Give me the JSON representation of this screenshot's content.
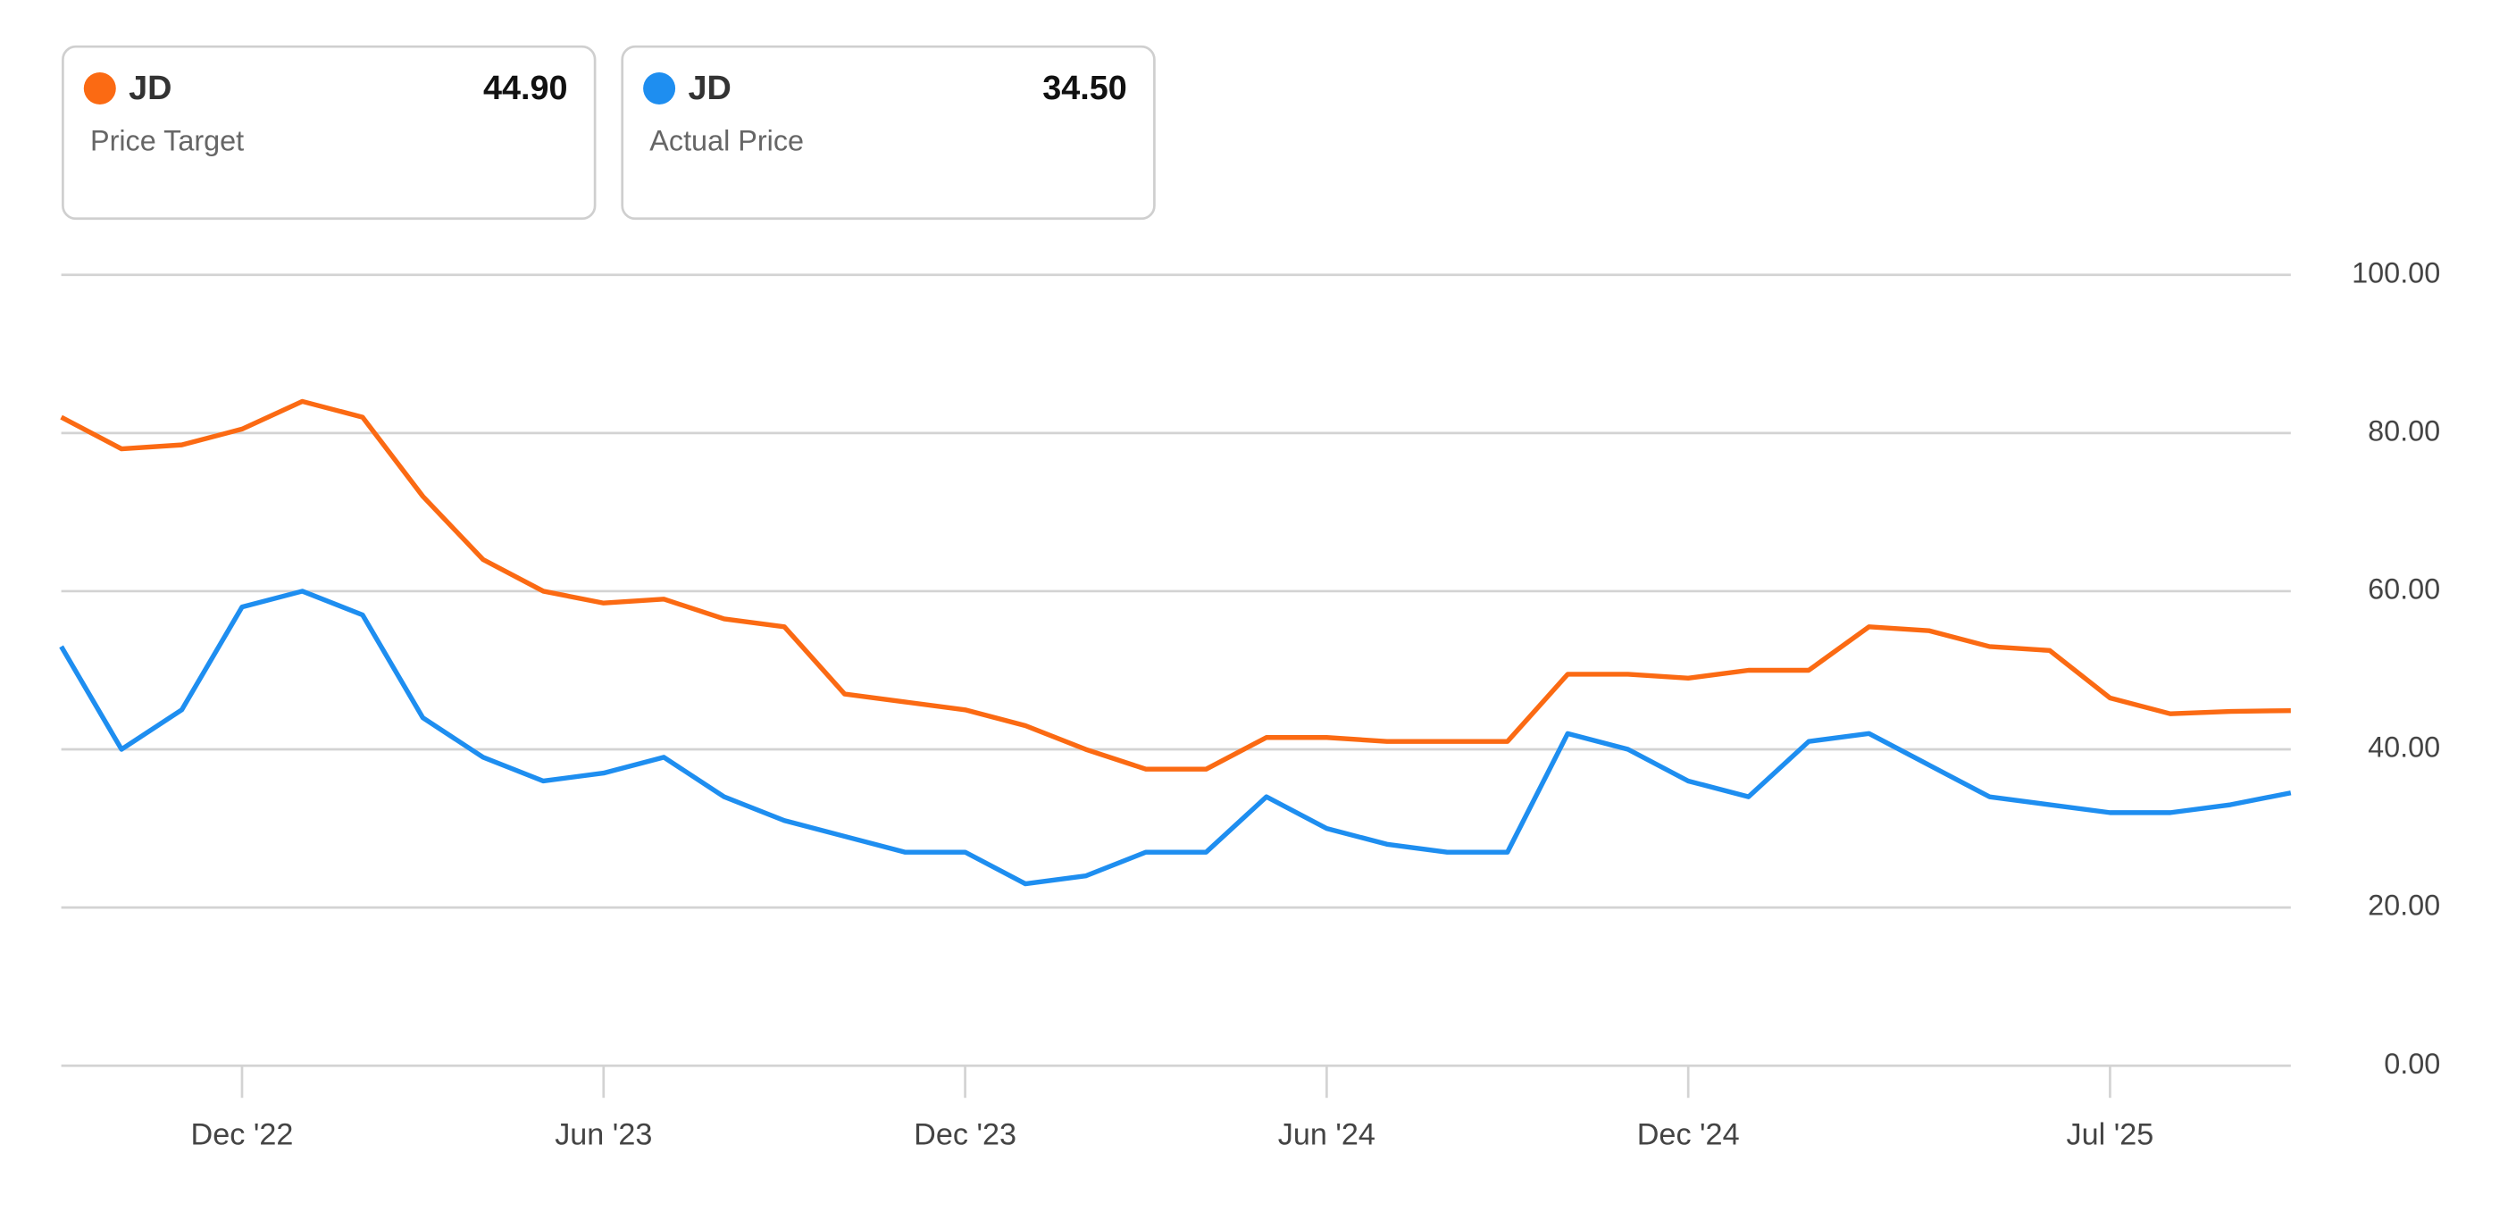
{
  "chart_data": {
    "type": "line",
    "categories": [
      null,
      null,
      null,
      "Dec '22",
      null,
      null,
      null,
      null,
      null,
      "Jun '23",
      null,
      null,
      null,
      null,
      null,
      "Dec '23",
      null,
      null,
      null,
      null,
      null,
      "Jun '24",
      null,
      null,
      null,
      null,
      null,
      "Dec '24",
      null,
      null,
      null,
      null,
      null,
      null,
      "Jul '25",
      null,
      null,
      null
    ],
    "series": [
      {
        "name": "JD",
        "label": "Price Target",
        "color": "#fb6a13",
        "latest": {
          "value": 44.9,
          "label": "44.90"
        },
        "values": [
          82,
          78,
          78.5,
          80.5,
          84,
          82,
          72,
          64,
          60,
          58.5,
          59,
          56.5,
          55.5,
          47,
          46,
          45,
          43,
          40,
          37.5,
          37.5,
          41.5,
          41.5,
          41,
          41,
          41,
          49.5,
          49.5,
          49,
          50,
          50,
          55.5,
          55,
          53,
          52.5,
          46.5,
          44.5,
          44.8,
          44.9
        ]
      },
      {
        "name": "JD",
        "label": "Actual Price",
        "color": "#1e8ef0",
        "latest": {
          "value": 34.5,
          "label": "34.50"
        },
        "values": [
          53,
          40,
          45,
          58,
          60,
          57,
          44,
          39,
          36,
          37,
          39,
          34,
          31,
          29,
          27,
          27,
          23,
          24,
          27,
          27,
          34,
          30,
          28,
          27,
          27,
          42,
          40,
          36,
          34,
          41,
          42,
          38,
          34,
          33,
          32,
          32,
          33,
          34.5
        ]
      }
    ],
    "ylim": [
      0,
      100
    ],
    "yticks": [
      {
        "value": 0,
        "label": "0.00"
      },
      {
        "value": 20,
        "label": "20.00"
      },
      {
        "value": 40,
        "label": "40.00"
      },
      {
        "value": 60,
        "label": "60.00"
      },
      {
        "value": 80,
        "label": "80.00"
      },
      {
        "value": 100,
        "label": "100.00"
      }
    ],
    "grid": true
  }
}
